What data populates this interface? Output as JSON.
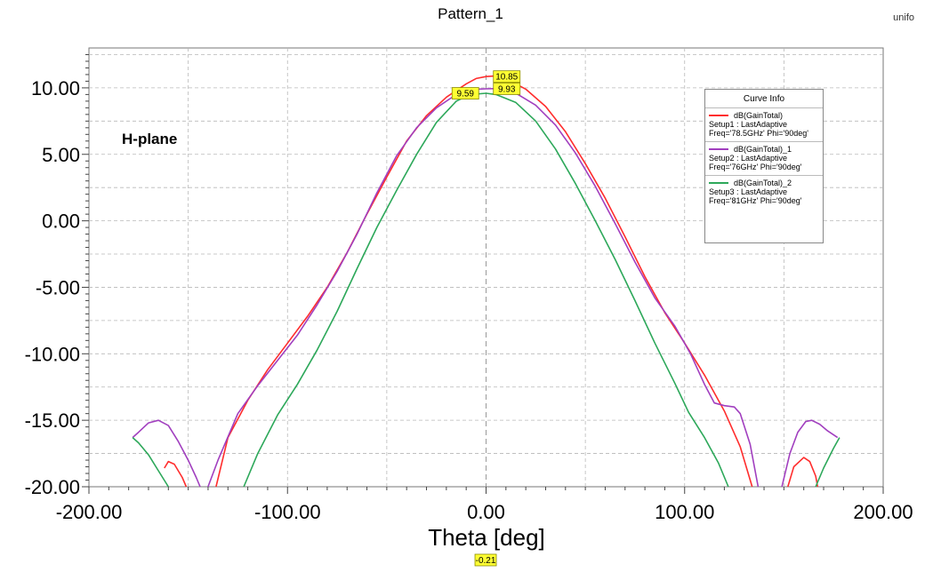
{
  "title": "Pattern_1",
  "corner_label": "unifo",
  "annotation": "H-plane",
  "colors": {
    "series_red": "#ff2d2d",
    "series_purple": "#a13fbf",
    "series_green": "#2da85a",
    "marker_fill": "#ffff33",
    "grid": "#b8b8b8",
    "zero_line": "#999999"
  },
  "legend": {
    "title": "Curve Info",
    "items": [
      {
        "name": "dB(GainTotal)",
        "setup": "Setup1 : LastAdaptive",
        "freq": "Freq='78.5GHz' Phi='90deg'"
      },
      {
        "name": "dB(GainTotal)_1",
        "setup": "Setup2 : LastAdaptive",
        "freq": "Freq='76GHz' Phi='90deg'"
      },
      {
        "name": "dB(GainTotal)_2",
        "setup": "Setup3 : LastAdaptive",
        "freq": "Freq='81GHz' Phi='90deg'"
      }
    ]
  },
  "markers": {
    "red_peak": "10.85",
    "purple_peak": "9.93",
    "green_peak": "9.59",
    "x_marker": "-0.21"
  },
  "chart_data": {
    "type": "line",
    "title": "Pattern_1",
    "xlabel": "Theta [deg]",
    "ylabel": "",
    "xlim": [
      -200,
      200
    ],
    "ylim": [
      -20,
      13
    ],
    "x_ticks": [
      "-200.00",
      "-100.00",
      "0.00",
      "100.00",
      "200.00"
    ],
    "y_ticks": [
      "10.00",
      "5.00",
      "0.00",
      "-5.00",
      "-10.00",
      "-15.00",
      "-20.00"
    ],
    "grid": true,
    "legend_position": "top-right",
    "series": [
      {
        "name": "dB(GainTotal)",
        "color": "#ff2d2d",
        "segments": [
          [
            [
              -162,
              -18.6
            ],
            [
              -160,
              -18.1
            ],
            [
              -157,
              -18.3
            ],
            [
              -153,
              -19.3
            ],
            [
              -151,
              -20
            ]
          ],
          [
            [
              -136,
              -20
            ],
            [
              -130,
              -16.3
            ],
            [
              -120,
              -13.5
            ],
            [
              -110,
              -11.2
            ],
            [
              -100,
              -9.2
            ],
            [
              -90,
              -7.2
            ],
            [
              -80,
              -5.0
            ],
            [
              -70,
              -2.4
            ],
            [
              -60,
              0.5
            ],
            [
              -50,
              3.3
            ],
            [
              -40,
              6.0
            ],
            [
              -30,
              7.9
            ],
            [
              -20,
              9.3
            ],
            [
              -10,
              10.3
            ],
            [
              -5,
              10.7
            ],
            [
              0,
              10.85
            ],
            [
              5,
              10.9
            ],
            [
              10,
              10.7
            ],
            [
              20,
              9.9
            ],
            [
              30,
              8.6
            ],
            [
              40,
              6.7
            ],
            [
              50,
              4.3
            ],
            [
              60,
              1.7
            ],
            [
              70,
              -1.2
            ],
            [
              80,
              -4.2
            ],
            [
              90,
              -6.9
            ],
            [
              100,
              -9.2
            ],
            [
              110,
              -11.6
            ],
            [
              120,
              -14.3
            ],
            [
              128,
              -17.0
            ],
            [
              134,
              -20
            ]
          ],
          [
            [
              152,
              -20
            ],
            [
              155,
              -18.5
            ],
            [
              160,
              -17.8
            ],
            [
              163,
              -18.1
            ],
            [
              166,
              -19.2
            ],
            [
              167,
              -20
            ]
          ]
        ]
      },
      {
        "name": "dB(GainTotal)_1",
        "color": "#a13fbf",
        "segments": [
          [
            [
              -178,
              -16.3
            ],
            [
              -175,
              -15.9
            ],
            [
              -170,
              -15.2
            ],
            [
              -165,
              -15.0
            ],
            [
              -160,
              -15.4
            ],
            [
              -155,
              -16.6
            ],
            [
              -150,
              -18.0
            ],
            [
              -146,
              -19.3
            ],
            [
              -144,
              -20
            ]
          ],
          [
            [
              -140,
              -20
            ],
            [
              -135,
              -18.0
            ],
            [
              -125,
              -14.5
            ],
            [
              -115,
              -12.4
            ],
            [
              -105,
              -10.5
            ],
            [
              -95,
              -8.6
            ],
            [
              -85,
              -6.3
            ],
            [
              -75,
              -3.8
            ],
            [
              -65,
              -1.0
            ],
            [
              -55,
              2.1
            ],
            [
              -45,
              4.9
            ],
            [
              -35,
              7.0
            ],
            [
              -25,
              8.5
            ],
            [
              -15,
              9.5
            ],
            [
              -5,
              9.9
            ],
            [
              0,
              9.93
            ],
            [
              5,
              9.95
            ],
            [
              15,
              9.6
            ],
            [
              25,
              8.7
            ],
            [
              35,
              7.2
            ],
            [
              45,
              5.1
            ],
            [
              55,
              2.6
            ],
            [
              65,
              -0.2
            ],
            [
              75,
              -3.1
            ],
            [
              85,
              -5.8
            ],
            [
              95,
              -7.9
            ],
            [
              103,
              -10.0
            ],
            [
              110,
              -12.3
            ],
            [
              115,
              -13.7
            ],
            [
              120,
              -13.9
            ],
            [
              125,
              -14.0
            ],
            [
              128,
              -14.5
            ],
            [
              133,
              -16.8
            ],
            [
              137,
              -20
            ]
          ],
          [
            [
              149,
              -20
            ],
            [
              153,
              -17.5
            ],
            [
              157,
              -15.9
            ],
            [
              161,
              -15.1
            ],
            [
              164,
              -15.0
            ],
            [
              168,
              -15.3
            ],
            [
              172,
              -15.8
            ],
            [
              177,
              -16.3
            ]
          ]
        ]
      },
      {
        "name": "dB(GainTotal)_2",
        "color": "#2da85a",
        "segments": [
          [
            [
              -178,
              -16.3
            ],
            [
              -175,
              -16.7
            ],
            [
              -170,
              -17.6
            ],
            [
              -165,
              -18.8
            ],
            [
              -160,
              -20
            ]
          ],
          [
            [
              -122,
              -20
            ],
            [
              -115,
              -17.5
            ],
            [
              -105,
              -14.6
            ],
            [
              -95,
              -12.3
            ],
            [
              -85,
              -9.7
            ],
            [
              -75,
              -6.8
            ],
            [
              -65,
              -3.6
            ],
            [
              -55,
              -0.5
            ],
            [
              -45,
              2.3
            ],
            [
              -35,
              5.0
            ],
            [
              -25,
              7.4
            ],
            [
              -15,
              9.0
            ],
            [
              -8,
              9.5
            ],
            [
              0,
              9.59
            ],
            [
              5,
              9.5
            ],
            [
              15,
              8.9
            ],
            [
              25,
              7.5
            ],
            [
              35,
              5.4
            ],
            [
              45,
              2.8
            ],
            [
              55,
              0.0
            ],
            [
              65,
              -2.9
            ],
            [
              75,
              -6.0
            ],
            [
              85,
              -9.2
            ],
            [
              95,
              -12.2
            ],
            [
              102,
              -14.4
            ],
            [
              110,
              -16.3
            ],
            [
              117,
              -18.2
            ],
            [
              122,
              -20
            ]
          ],
          [
            [
              166,
              -20
            ],
            [
              170,
              -18.6
            ],
            [
              175,
              -17.1
            ],
            [
              178,
              -16.3
            ]
          ]
        ]
      }
    ]
  }
}
